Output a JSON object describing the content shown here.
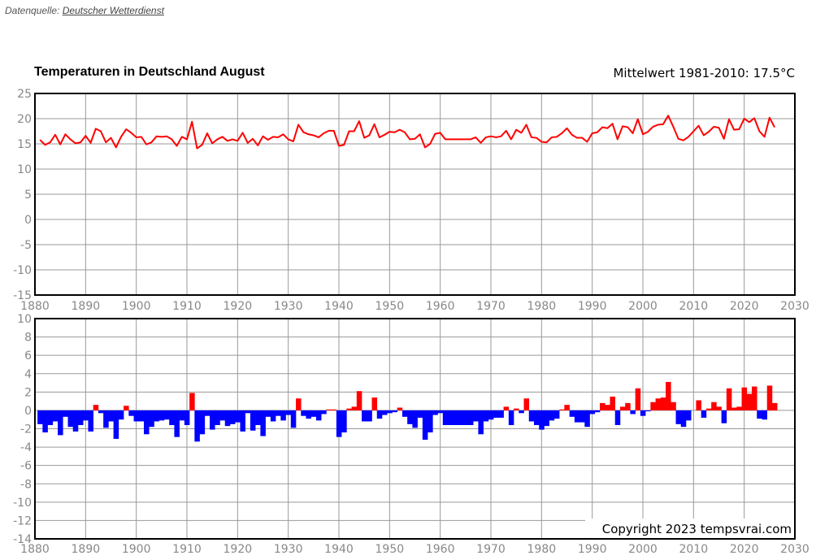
{
  "source": {
    "label": "Datenquelle:",
    "link_text": "Deutscher Wetterdienst"
  },
  "title": "Temperaturen in Deutschland August",
  "mean_label": "Mittelwert 1981-2010: 17.5°C",
  "copyright": "Copyright 2023 tempsvrai.com",
  "colors": {
    "line": "#ff0000",
    "positive": "#ff0000",
    "negative": "#0000ff",
    "grid": "#999999",
    "axis": "#000000"
  },
  "chart_data": [
    {
      "type": "line",
      "series": [
        {
          "color": "#ff0000",
          "x_start": 1881,
          "values": [
            15.8,
            14.8,
            15.3,
            16.8,
            14.9,
            16.9,
            15.9,
            15.1,
            15.3,
            16.6,
            15.2,
            18.0,
            17.5,
            15.3,
            16.2,
            14.3,
            16.4,
            17.9,
            17.2,
            16.3,
            16.4,
            14.9,
            15.3,
            16.5,
            16.4,
            16.5,
            15.9,
            14.6,
            16.4,
            15.9,
            19.4,
            14.1,
            14.8,
            17.1,
            15.1,
            15.9,
            16.4,
            15.6,
            15.9,
            15.6,
            17.2,
            15.2,
            16.0,
            14.7,
            16.5,
            15.8,
            16.4,
            16.3,
            16.9,
            15.9,
            15.5,
            18.8,
            17.3,
            16.9,
            16.7,
            16.3,
            17.1,
            17.6,
            17.6,
            14.6,
            14.8,
            17.5,
            17.5,
            19.5,
            16.2,
            16.7,
            18.9,
            16.3,
            16.8,
            17.4,
            17.3,
            17.8,
            17.3,
            15.9,
            16.0,
            16.9,
            14.3,
            15.0,
            17.0,
            17.2,
            15.9,
            15.9,
            15.9,
            15.9,
            15.9,
            15.9,
            16.3,
            15.2,
            16.3,
            16.5,
            16.3,
            16.5,
            17.6,
            15.9,
            17.8,
            17.2,
            18.8,
            16.3,
            16.2,
            15.4,
            15.3,
            16.3,
            16.4,
            17.1,
            18.1,
            16.8,
            16.2,
            16.2,
            15.4,
            17.1,
            17.3,
            18.3,
            18.1,
            19.0,
            15.9,
            18.5,
            18.3,
            17.1,
            19.9,
            16.9,
            17.4,
            18.4,
            18.8,
            18.9,
            20.6,
            18.4,
            16.0,
            15.7,
            16.4,
            17.5,
            18.6,
            16.7,
            17.4,
            18.4,
            18.2,
            16.0,
            19.9,
            17.8,
            17.9,
            20.0,
            19.3,
            20.1,
            17.5,
            16.4,
            20.2,
            18.3
          ]
        }
      ],
      "xlim": [
        1880,
        2030
      ],
      "ylim": [
        -15,
        25
      ],
      "xticks": [
        1880,
        1890,
        1900,
        1910,
        1920,
        1930,
        1940,
        1950,
        1960,
        1970,
        1980,
        1990,
        2000,
        2010,
        2020,
        2030
      ],
      "yticks": [
        25,
        20,
        15,
        10,
        5,
        0,
        -5,
        -10,
        -15
      ],
      "xtick_labels": [
        "1880",
        "1890",
        "1900",
        "1910",
        "1920",
        "1930",
        "1940",
        "1950",
        "1960",
        "1970",
        "1980",
        "1990",
        "2000",
        "2010",
        "2020",
        "2030"
      ],
      "ytick_labels": [
        "25",
        "20",
        "15",
        "10",
        "5",
        "0",
        "-5",
        "-10",
        "-15"
      ],
      "grid": true
    },
    {
      "type": "bar",
      "series": [
        {
          "x_start": 1881,
          "values": [
            -1.5,
            -2.4,
            -1.6,
            -1.2,
            -2.7,
            -0.7,
            -1.8,
            -2.3,
            -1.6,
            -1.1,
            -2.3,
            0.6,
            -0.3,
            -1.9,
            -1.2,
            -3.1,
            -1.0,
            0.5,
            -0.6,
            -1.2,
            -1.2,
            -2.6,
            -1.8,
            -1.2,
            -1.1,
            -1.0,
            -1.6,
            -2.9,
            -1.1,
            -1.6,
            1.9,
            -3.4,
            -2.6,
            -0.6,
            -2.1,
            -1.6,
            -1.1,
            -1.7,
            -1.5,
            -1.3,
            -2.3,
            -0.3,
            -2.2,
            -1.6,
            -2.8,
            -0.7,
            -1.2,
            -0.6,
            -1.1,
            -0.5,
            -1.9,
            1.3,
            -0.6,
            -0.9,
            -0.7,
            -1.1,
            -0.4,
            0.1,
            0.1,
            -2.9,
            -2.4,
            0.2,
            0.4,
            2.1,
            -1.2,
            -1.2,
            1.4,
            -0.9,
            -0.5,
            -0.3,
            -0.2,
            0.3,
            -0.7,
            -1.5,
            -1.9,
            -0.8,
            -3.2,
            -2.4,
            -0.5,
            -0.3,
            -1.6,
            -1.6,
            -1.6,
            -1.6,
            -1.6,
            -1.6,
            -1.2,
            -2.6,
            -1.2,
            -1.0,
            -0.8,
            -0.8,
            0.4,
            -1.6,
            0.2,
            -0.3,
            1.3,
            -1.2,
            -1.6,
            -2.1,
            -1.7,
            -1.1,
            -0.9,
            0.1,
            0.6,
            -0.7,
            -1.3,
            -1.3,
            -1.8,
            -0.4,
            -0.2,
            0.8,
            0.6,
            1.5,
            -1.6,
            0.4,
            0.8,
            -0.4,
            2.4,
            -0.6,
            -0.1,
            0.9,
            1.3,
            1.4,
            3.1,
            0.9,
            -1.5,
            -1.8,
            -1.1,
            0.0,
            1.1,
            -0.8,
            0.2,
            0.9,
            0.4,
            -1.4,
            2.4,
            0.3,
            0.4,
            2.5,
            1.8,
            2.6,
            -0.9,
            -1.0,
            2.7,
            0.8
          ]
        }
      ],
      "xlim": [
        1880,
        2030
      ],
      "ylim": [
        -14,
        10
      ],
      "xticks": [
        1880,
        1890,
        1900,
        1910,
        1920,
        1930,
        1940,
        1950,
        1960,
        1970,
        1980,
        1990,
        2000,
        2010,
        2020,
        2030
      ],
      "yticks": [
        10,
        8,
        6,
        4,
        2,
        0,
        -2,
        -4,
        -6,
        -8,
        -10,
        -12,
        -14
      ],
      "xtick_labels": [
        "1880",
        "1890",
        "1900",
        "1910",
        "1920",
        "1930",
        "1940",
        "1950",
        "1960",
        "1970",
        "1980",
        "1990",
        "2000",
        "2010",
        "2020",
        "2030"
      ],
      "ytick_labels": [
        "10",
        "8",
        "6",
        "4",
        "2",
        "0",
        "-2",
        "-4",
        "-6",
        "-8",
        "-10",
        "-12",
        "-14"
      ],
      "grid": true
    }
  ]
}
